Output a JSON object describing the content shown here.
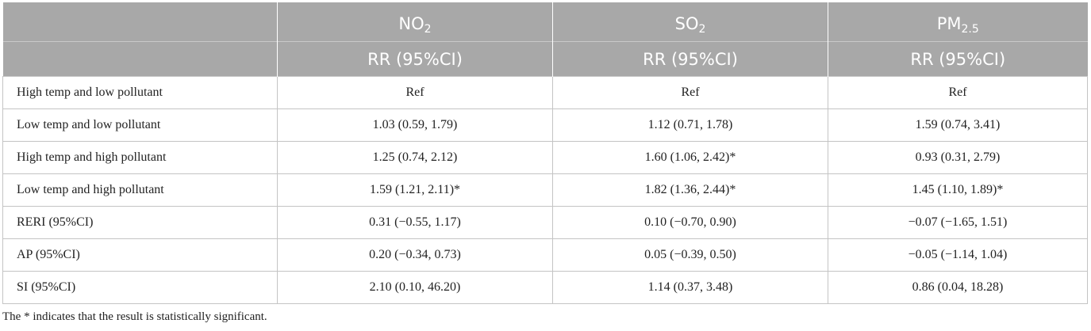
{
  "header": {
    "columns": [
      {
        "name_main": "NO",
        "name_sub": "2",
        "metric": "RR (95%CI)"
      },
      {
        "name_main": "SO",
        "name_sub": "2",
        "metric": "RR (95%CI)"
      },
      {
        "name_main": "PM",
        "name_sub": "2.5",
        "metric": "RR (95%CI)"
      }
    ]
  },
  "rows": [
    {
      "label": "High temp and low pollutant",
      "values": [
        "Ref",
        "Ref",
        "Ref"
      ]
    },
    {
      "label": "Low temp and low pollutant",
      "values": [
        "1.03 (0.59, 1.79)",
        "1.12 (0.71, 1.78)",
        "1.59 (0.74, 3.41)"
      ]
    },
    {
      "label": "High temp and high pollutant",
      "values": [
        "1.25 (0.74, 2.12)",
        "1.60 (1.06, 2.42)*",
        "0.93 (0.31, 2.79)"
      ]
    },
    {
      "label": "Low temp and high pollutant",
      "values": [
        "1.59 (1.21, 2.11)*",
        "1.82 (1.36, 2.44)*",
        "1.45 (1.10, 1.89)*"
      ]
    },
    {
      "label": "RERI (95%CI)",
      "values": [
        "0.31 (−0.55, 1.17)",
        "0.10 (−0.70, 0.90)",
        "−0.07 (−1.65, 1.51)"
      ]
    },
    {
      "label": "AP (95%CI)",
      "values": [
        "0.20 (−0.34, 0.73)",
        "0.05 (−0.39, 0.50)",
        "−0.05 (−1.14, 1.04)"
      ]
    },
    {
      "label": "SI (95%CI)",
      "values": [
        "2.10 (0.10, 46.20)",
        "1.14 (0.37, 3.48)",
        "0.86 (0.04, 18.28)"
      ]
    }
  ],
  "footnote": "The * indicates that the result is statistically significant."
}
